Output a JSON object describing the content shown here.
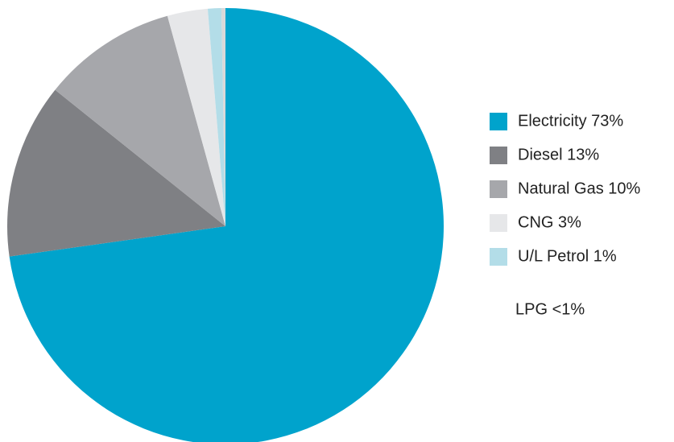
{
  "chart_data": {
    "type": "pie",
    "categories": [
      "Electricity 73%",
      "Diesel 13%",
      "Natural Gas 10%",
      "CNG  3%",
      "U/L Petrol 1%",
      "LPG <1%"
    ],
    "values": [
      73,
      13,
      10,
      3,
      1,
      0.3
    ],
    "colors": [
      "#00a3cc",
      "#7f8084",
      "#a6a7ab",
      "#e6e7e9",
      "#b3dde8",
      null
    ]
  }
}
